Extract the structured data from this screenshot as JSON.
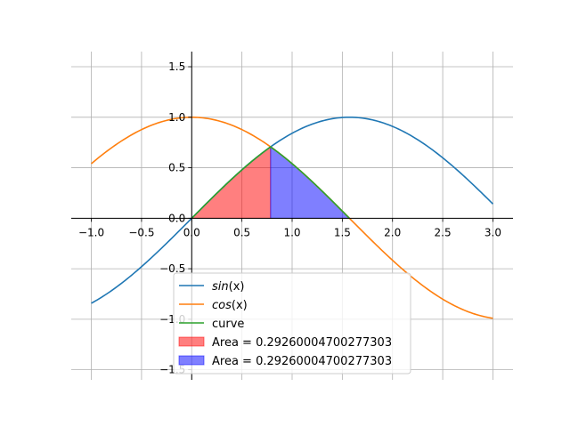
{
  "chart_data": {
    "type": "line",
    "title": "",
    "xlabel": "",
    "ylabel": "",
    "xlim": [
      -1.2,
      3.2
    ],
    "ylim": [
      -1.6,
      1.65
    ],
    "grid": true,
    "spines": "centered at origin",
    "x_ticks": [
      -1.0,
      -0.5,
      0.0,
      0.5,
      1.0,
      1.5,
      2.0,
      2.5,
      3.0
    ],
    "x_tick_labels": [
      "−1.0",
      "−0.5",
      "0.0",
      "0.5",
      "1.0",
      "1.5",
      "2.0",
      "2.5",
      "3.0"
    ],
    "y_ticks": [
      -1.5,
      -1.0,
      -0.5,
      0.0,
      0.5,
      1.0,
      1.5
    ],
    "y_tick_labels": [
      "−1.5",
      "−1.0",
      "−0.5",
      "0.0",
      "0.5",
      "1.0",
      "1.5"
    ],
    "x_domain": [
      -1.0,
      3.0
    ],
    "series": [
      {
        "name": "sin(x)",
        "label_prefix": "sin",
        "label_suffix": "(x)",
        "function": "sin",
        "x_range": [
          -1.0,
          3.0
        ],
        "color": "#1f77b4"
      },
      {
        "name": "cos(x)",
        "label_prefix": "cos",
        "label_suffix": "(x)",
        "function": "cos",
        "x_range": [
          -1.0,
          3.0
        ],
        "color": "#ff7f0e"
      },
      {
        "name": "curve",
        "label_prefix": "curve",
        "label_suffix": "",
        "function": "min(sin,cos)",
        "x_range": [
          0.0,
          1.5708
        ],
        "color": "#2ca02c"
      }
    ],
    "areas": [
      {
        "label": "Area = 0.29260004700277303",
        "function": "sin",
        "x_range": [
          0.0,
          0.7854
        ],
        "color": "#ff0000",
        "alpha": 0.5
      },
      {
        "label": "Area = 0.29260004700277303",
        "function": "cos",
        "x_range": [
          0.7854,
          1.5708
        ],
        "color": "#0000ff",
        "alpha": 0.5
      }
    ],
    "legend": {
      "position": "lower-center",
      "entries": [
        {
          "kind": "line",
          "label_prefix": "sin",
          "label_suffix": "(x)",
          "color": "#1f77b4"
        },
        {
          "kind": "line",
          "label_prefix": "cos",
          "label_suffix": "(x)",
          "color": "#ff7f0e"
        },
        {
          "kind": "line",
          "label_prefix": "curve",
          "label_suffix": "",
          "color": "#2ca02c"
        },
        {
          "kind": "patch",
          "label_prefix": "Area = 0.29260004700277303",
          "label_suffix": "",
          "color": "#ff0000"
        },
        {
          "kind": "patch",
          "label_prefix": "Area = 0.29260004700277303",
          "label_suffix": "",
          "color": "#0000ff"
        }
      ]
    }
  }
}
